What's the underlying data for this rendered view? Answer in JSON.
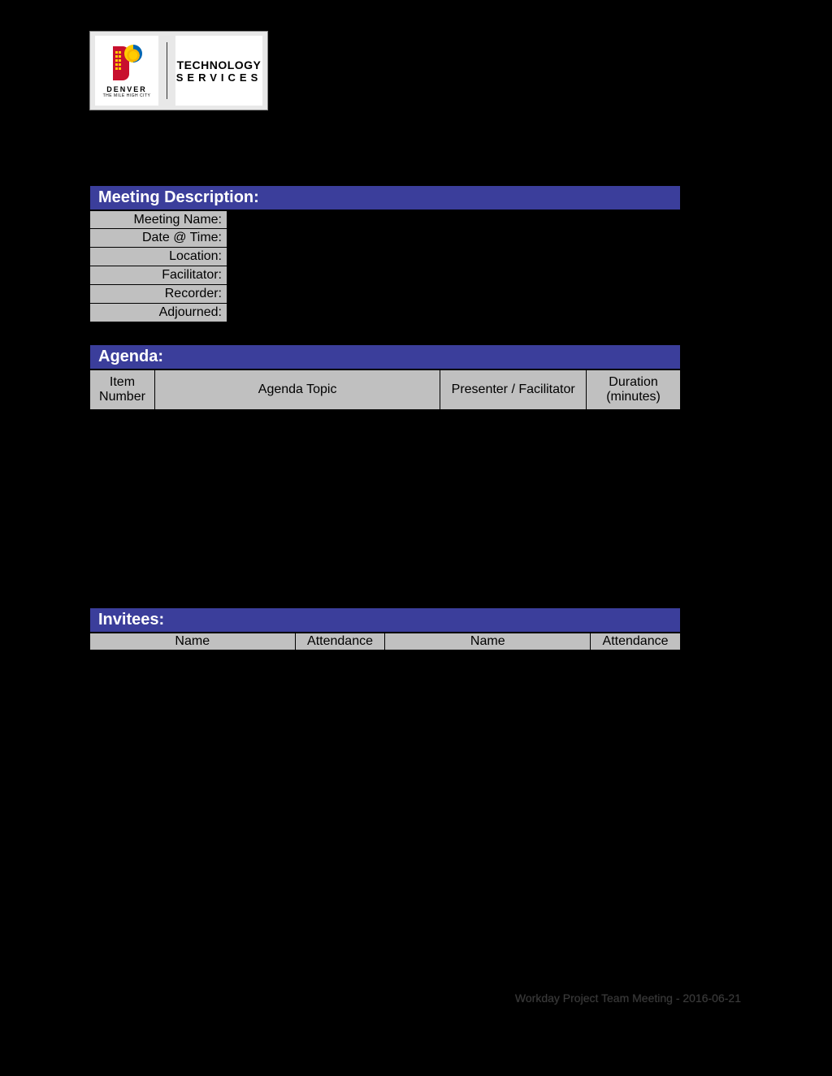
{
  "logo": {
    "denver_text": "DENVER",
    "denver_subtext": "THE MILE HIGH CITY",
    "tech_line1": "TECHNOLOGY",
    "tech_line2": "SERVICES"
  },
  "colors": {
    "page_bg": "#000000",
    "section_header_bg": "#3b3e9b",
    "section_header_text": "#ffffff",
    "cell_bg": "#c0c0c0",
    "cell_text": "#000000",
    "border": "#000000"
  },
  "meeting_description": {
    "header": "Meeting Description:",
    "rows": [
      {
        "label": "Meeting Name:"
      },
      {
        "label": "Date @ Time:"
      },
      {
        "label": "Location:"
      },
      {
        "label": "Facilitator:"
      },
      {
        "label": "Recorder:"
      },
      {
        "label": "Adjourned:"
      }
    ]
  },
  "agenda": {
    "header": "Agenda:",
    "columns": {
      "item_number": "Item Number",
      "topic": "Agenda Topic",
      "presenter": "Presenter / Facilitator",
      "duration": "Duration (minutes)"
    }
  },
  "invitees": {
    "header": "Invitees:",
    "columns": {
      "name": "Name",
      "attendance": "Attendance"
    }
  },
  "footer": "Workday Project Team Meeting - 2016-06-21"
}
